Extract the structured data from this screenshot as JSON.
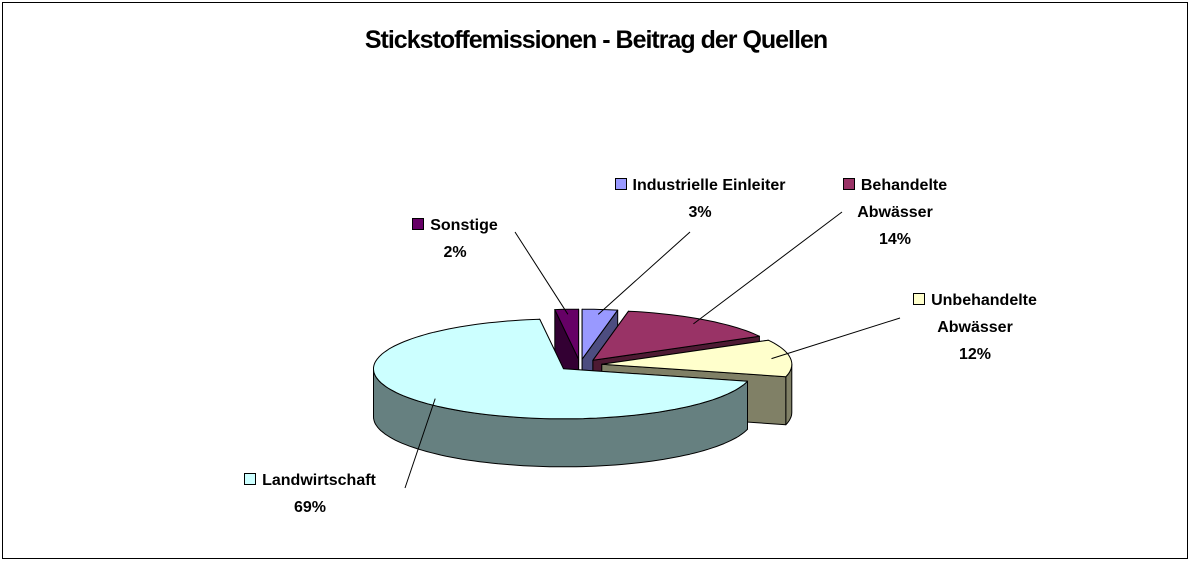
{
  "chart_data": {
    "type": "pie",
    "title": "Stickstoffemissionen - Beitrag der Quellen",
    "categories": [
      "Industrielle Einleiter",
      "Behandelte Abwässer",
      "Unbehandelte Abwässer",
      "Landwirtschaft",
      "Sonstige"
    ],
    "values": [
      3,
      14,
      12,
      69,
      2
    ],
    "value_labels": [
      "3%",
      "14%",
      "12%",
      "69%",
      "2%"
    ],
    "colors": [
      "#9999ff",
      "#993366",
      "#ffffcc",
      "#ccffff",
      "#660066"
    ]
  }
}
